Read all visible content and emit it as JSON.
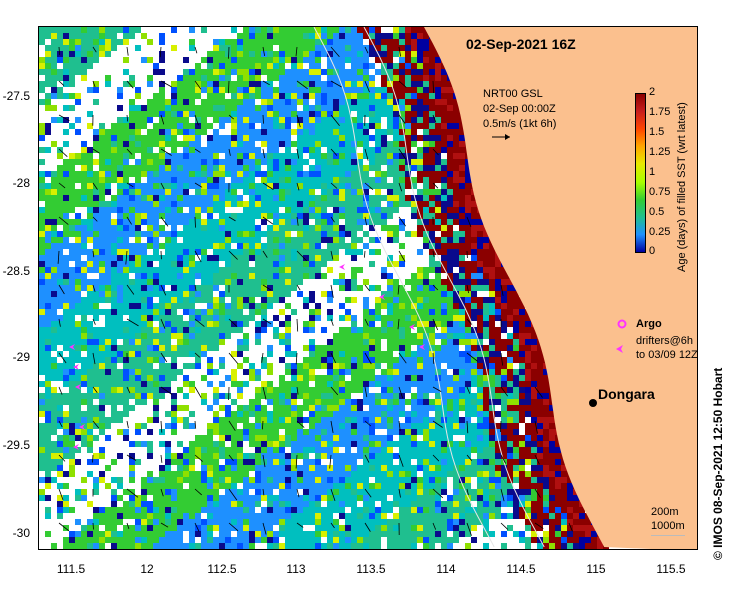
{
  "title": "02-Sep-2021 16Z",
  "reference_vector": {
    "line1": "NRT00 GSL",
    "line2": "02-Sep 00:00Z",
    "line3": "0.5m/s (1kt 6h)"
  },
  "colorbar": {
    "title": "Age (days) of filled SST (wrt latest)",
    "ticks": [
      "2",
      "1.75",
      "1.5",
      "1.25",
      "1",
      "0.75",
      "0.5",
      "0.25",
      "0"
    ],
    "colors": [
      "#8b0000",
      "#c81e1e",
      "#ff4500",
      "#ffa500",
      "#e8e800",
      "#a6ff00",
      "#33cc33",
      "#1fbf8f",
      "#1e90ff",
      "#0000a0"
    ]
  },
  "axes": {
    "y_ticks": [
      "-27.5",
      "-28",
      "-28.5",
      "-29",
      "-29.5",
      "-30"
    ],
    "x_ticks": [
      "111.5",
      "12",
      "112.5",
      "113",
      "113.5",
      "114",
      "114.5",
      "115",
      "115.5"
    ]
  },
  "legend": {
    "argo_label": "Argo",
    "drifters_line1": "drifters@6h",
    "drifters_line2": "to 03/09 12Z"
  },
  "place": {
    "name": "Dongara"
  },
  "bathymetry": {
    "line1": "200m",
    "line2": "1000m"
  },
  "credit": "© IMOS 08-Sep-2021 12:50 Hobart",
  "colors": {
    "land": "#fbc08e",
    "marker": "#ff33ff"
  }
}
